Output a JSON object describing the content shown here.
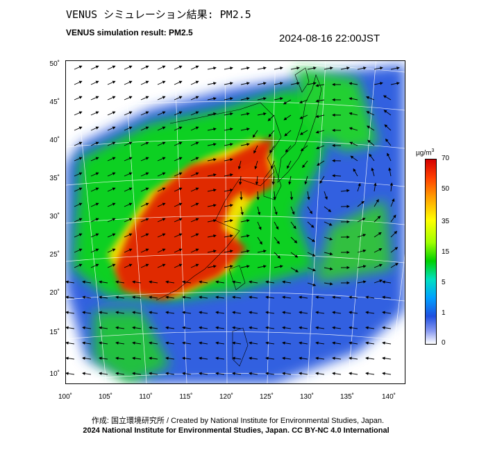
{
  "header": {
    "title_jp": "VENUS シミュレーション結果: PM2.5",
    "title_en": "VENUS simulation result: PM2.5",
    "timestamp": "2024-08-16 22:00JST"
  },
  "map": {
    "lat_ticks": [
      "50˚",
      "45˚",
      "40˚",
      "35˚",
      "30˚",
      "25˚",
      "20˚",
      "15˚",
      "10˚"
    ],
    "lon_ticks": [
      "100˚",
      "105˚",
      "110˚",
      "115˚",
      "120˚",
      "125˚",
      "130˚",
      "135˚",
      "140˚"
    ],
    "lat_range": [
      9,
      51
    ],
    "lon_range": [
      100,
      142
    ],
    "colors": {
      "very_high": "#e02000",
      "high": "#ff8000",
      "medium": "#80ff00",
      "green": "#10d020",
      "cyan": "#00d0b0",
      "low": "#2080ff",
      "very_low": "#3050e0"
    }
  },
  "colorbar": {
    "unit_base": "µg/m",
    "unit_sup": "3",
    "ticks": [
      "70",
      "50",
      "35",
      "15",
      "5",
      "1",
      "0"
    ]
  },
  "footer": {
    "credit_line": "作成: 国立環境研究所 / Created by National Institute for Environmental Studies, Japan.",
    "license_line": "2024 National Institute for Environmental Studies, Japan. CC BY-NC 4.0 International"
  }
}
